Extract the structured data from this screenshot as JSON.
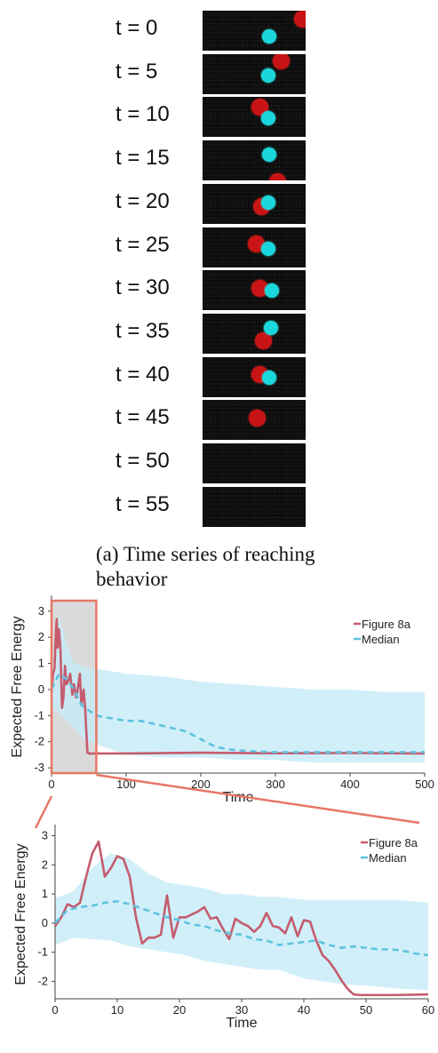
{
  "frames": [
    {
      "label": "t = 0",
      "red": [
        0.97,
        0.2
      ],
      "cyan": [
        0.65,
        0.65
      ]
    },
    {
      "label": "t = 5",
      "red": [
        0.76,
        0.17
      ],
      "cyan": [
        0.64,
        0.55
      ]
    },
    {
      "label": "t = 10",
      "red": [
        0.56,
        0.25
      ],
      "cyan": [
        0.64,
        0.53
      ]
    },
    {
      "label": "t = 15",
      "red": [
        0.73,
        1.03
      ],
      "cyan": [
        0.65,
        0.35
      ]
    },
    {
      "label": "t = 20",
      "red": [
        0.57,
        0.58
      ],
      "cyan": [
        0.64,
        0.47
      ]
    },
    {
      "label": "t = 25",
      "red": [
        0.52,
        0.43
      ],
      "cyan": [
        0.64,
        0.55
      ]
    },
    {
      "label": "t = 30",
      "red": [
        0.56,
        0.45
      ],
      "cyan": [
        0.67,
        0.5
      ]
    },
    {
      "label": "t = 35",
      "red": [
        0.59,
        0.67
      ],
      "cyan": [
        0.66,
        0.36
      ]
    },
    {
      "label": "t = 40",
      "red": [
        0.56,
        0.45
      ],
      "cyan": [
        0.65,
        0.53
      ]
    },
    {
      "label": "t = 45",
      "red": [
        0.53,
        0.45
      ],
      "cyan": null
    },
    {
      "label": "t = 50",
      "red": null,
      "cyan": null
    },
    {
      "label": "t = 55",
      "red": null,
      "cyan": null
    }
  ],
  "caption": "(a) Time series of reaching behavior",
  "colors": {
    "figure8a": "#c45c6e",
    "median": "#5fc3df",
    "band": "#c6ebf7",
    "highlight": "#e87665",
    "highlight_fill": "#dadada"
  },
  "chart_data": [
    {
      "type": "line",
      "xlabel": "Time",
      "ylabel": "Expected Free Energy",
      "xlim": [
        0,
        500
      ],
      "ylim": [
        -3.2,
        3.4
      ],
      "xticks": [
        0,
        100,
        200,
        300,
        400,
        500
      ],
      "yticks": [
        3,
        2,
        1,
        0,
        -1,
        -2,
        -3
      ],
      "legend_position": "top-right",
      "highlight_range": [
        0,
        60
      ],
      "band": {
        "x": [
          0,
          5,
          10,
          20,
          30,
          40,
          50,
          60,
          80,
          100,
          150,
          200,
          250,
          300,
          350,
          400,
          450,
          500
        ],
        "upper": [
          0.9,
          1.3,
          2.8,
          1.8,
          1.0,
          0.9,
          0.8,
          0.8,
          0.7,
          0.6,
          0.5,
          0.3,
          0.2,
          0.1,
          0.0,
          0.0,
          -0.1,
          -0.1
        ],
        "lower": [
          -0.7,
          -0.8,
          -0.9,
          -1.2,
          -1.5,
          -1.8,
          -2.0,
          -2.1,
          -2.3,
          -2.5,
          -2.6,
          -2.6,
          -2.7,
          -2.7,
          -2.8,
          -2.8,
          -2.8,
          -2.8
        ]
      },
      "series": [
        {
          "name": "Figure 8a",
          "x": [
            0,
            2,
            4,
            6,
            7,
            8,
            10,
            12,
            14,
            16,
            18,
            20,
            22,
            25,
            28,
            30,
            33,
            35,
            38,
            40,
            43,
            45,
            48,
            50,
            60,
            100,
            200,
            300,
            400,
            500
          ],
          "values": [
            -0.1,
            0.6,
            0.8,
            2.3,
            2.7,
            1.6,
            2.3,
            1.5,
            -0.7,
            -0.3,
            0.9,
            0.2,
            0.3,
            0.6,
            -0.2,
            0.2,
            -0.3,
            0.0,
            0.6,
            -0.6,
            0.0,
            -0.7,
            -2.4,
            -2.45,
            -2.45,
            -2.45,
            -2.42,
            -2.44,
            -2.43,
            -2.45
          ]
        },
        {
          "name": "Median",
          "x": [
            0,
            10,
            20,
            30,
            40,
            50,
            60,
            80,
            100,
            120,
            150,
            180,
            200,
            220,
            240,
            260,
            300,
            350,
            400,
            450,
            500
          ],
          "values": [
            0.0,
            0.6,
            0.4,
            0.0,
            -0.6,
            -0.8,
            -1.0,
            -1.1,
            -1.2,
            -1.2,
            -1.4,
            -1.6,
            -1.9,
            -2.2,
            -2.3,
            -2.35,
            -2.4,
            -2.4,
            -2.4,
            -2.4,
            -2.4
          ]
        }
      ]
    },
    {
      "type": "line",
      "xlabel": "Time",
      "ylabel": "Expected Free Energy",
      "xlim": [
        0,
        60
      ],
      "ylim": [
        -2.6,
        3.2
      ],
      "xticks": [
        0,
        10,
        20,
        30,
        40,
        50,
        60
      ],
      "yticks": [
        3,
        2,
        1,
        0,
        -1,
        -2
      ],
      "legend_position": "top-right",
      "band": {
        "x": [
          0,
          3,
          6,
          9,
          12,
          15,
          18,
          21,
          24,
          27,
          30,
          33,
          36,
          40,
          43,
          46,
          50,
          55,
          60
        ],
        "upper": [
          0.85,
          1.1,
          1.9,
          2.4,
          2.2,
          1.7,
          1.4,
          1.3,
          1.2,
          1.0,
          1.0,
          0.9,
          0.9,
          0.8,
          0.8,
          0.8,
          0.8,
          0.8,
          0.7
        ],
        "lower": [
          -0.75,
          -0.5,
          -0.55,
          -0.6,
          -0.8,
          -0.9,
          -1.0,
          -1.1,
          -1.3,
          -1.4,
          -1.5,
          -1.6,
          -1.6,
          -1.9,
          -2.0,
          -2.1,
          -2.15,
          -2.25,
          -2.3
        ]
      },
      "series": [
        {
          "name": "Figure 8a",
          "x": [
            0,
            1,
            2,
            3,
            4,
            5,
            6,
            7,
            8,
            9,
            10,
            11,
            12,
            13,
            14,
            15,
            16,
            17,
            18,
            19,
            20,
            21,
            22,
            23,
            24,
            25,
            26,
            27,
            28,
            29,
            30,
            31,
            32,
            33,
            34,
            35,
            36,
            37,
            38,
            39,
            40,
            41,
            42,
            43,
            44,
            45,
            46,
            47,
            48,
            49,
            50,
            55,
            60
          ],
          "values": [
            -0.1,
            0.2,
            0.65,
            0.55,
            0.7,
            1.6,
            2.4,
            2.8,
            1.6,
            1.9,
            2.3,
            2.2,
            1.6,
            0.2,
            -0.7,
            -0.5,
            -0.5,
            -0.4,
            0.95,
            -0.5,
            0.2,
            0.2,
            0.3,
            0.4,
            0.55,
            0.15,
            0.2,
            -0.2,
            -0.55,
            0.15,
            0.0,
            -0.1,
            -0.3,
            -0.1,
            0.35,
            -0.1,
            -0.15,
            -0.35,
            0.2,
            -0.45,
            0.1,
            0.05,
            -0.6,
            -1.1,
            -1.3,
            -1.6,
            -1.95,
            -2.25,
            -2.45,
            -2.47,
            -2.47,
            -2.47,
            -2.45
          ]
        },
        {
          "name": "Median",
          "x": [
            0,
            2,
            4,
            6,
            8,
            10,
            12,
            14,
            16,
            18,
            20,
            22,
            24,
            26,
            28,
            30,
            32,
            34,
            36,
            38,
            40,
            42,
            44,
            46,
            48,
            50,
            52,
            54,
            56,
            58,
            60
          ],
          "values": [
            0.0,
            0.45,
            0.55,
            0.6,
            0.7,
            0.75,
            0.65,
            0.5,
            0.35,
            0.2,
            0.1,
            -0.05,
            -0.1,
            -0.25,
            -0.35,
            -0.4,
            -0.55,
            -0.6,
            -0.75,
            -0.7,
            -0.65,
            -0.6,
            -0.75,
            -0.85,
            -0.8,
            -0.85,
            -0.9,
            -0.9,
            -0.95,
            -1.05,
            -1.1
          ]
        }
      ]
    }
  ]
}
